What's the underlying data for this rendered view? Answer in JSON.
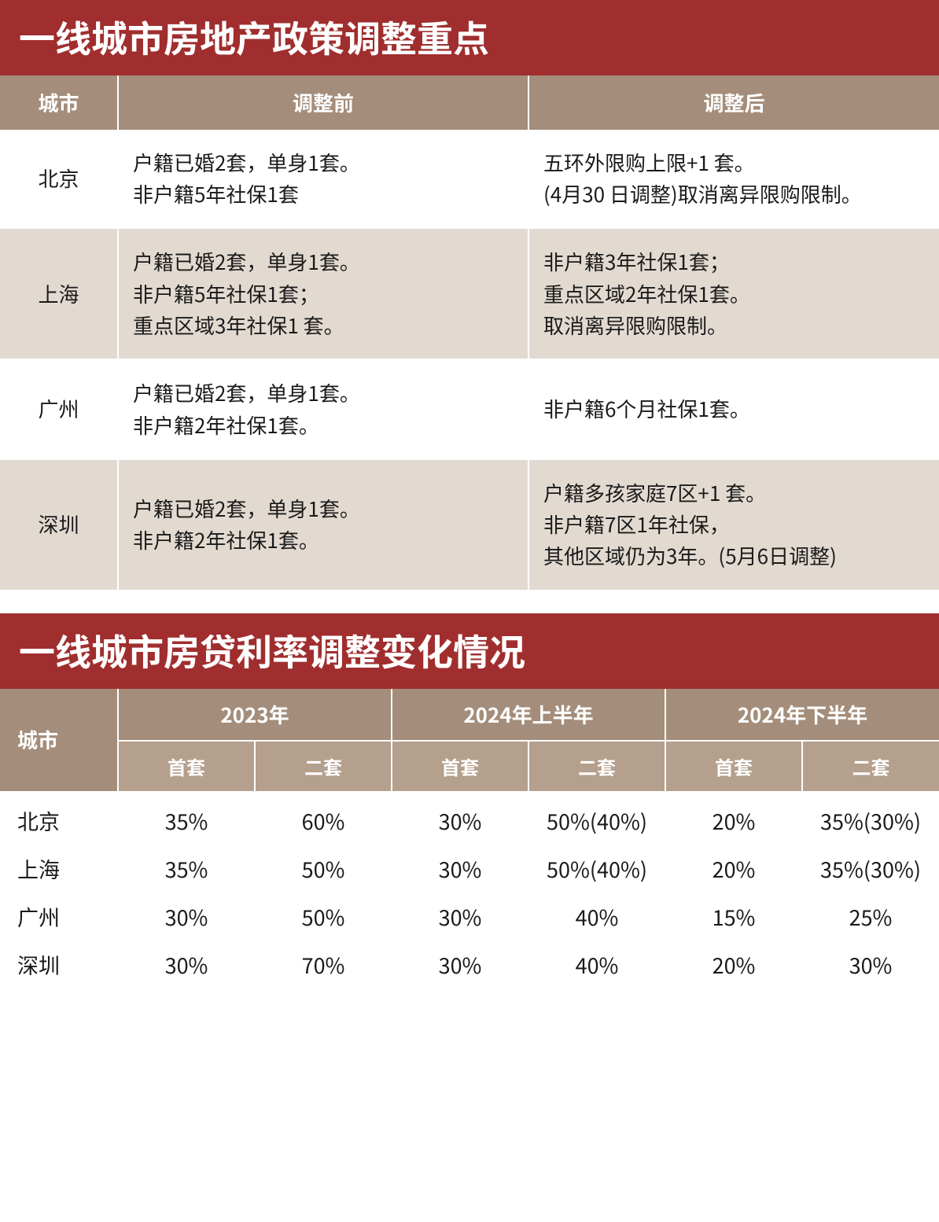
{
  "colors": {
    "title_bg": "#a02e2e",
    "header_bg": "#a48d7a",
    "header_sub_bg": "#b59f8d",
    "row_alt_bg": "#e2dad1",
    "row_bg": "#ffffff",
    "text_white": "#ffffff",
    "text_dark": "#1a1a1a",
    "border": "#ffffff"
  },
  "typography": {
    "title_fontsize": 46,
    "header_fontsize": 26,
    "cell_fontsize": 26,
    "sub_header_fontsize": 24,
    "t2_cell_fontsize": 27
  },
  "table1": {
    "title": "一线城市房地产政策调整重点",
    "columns": [
      "城市",
      "调整前",
      "调整后"
    ],
    "col_widths": [
      "150px",
      "auto",
      "auto"
    ],
    "rows": [
      {
        "city": "北京",
        "before": "户籍已婚2套，单身1套。\n非户籍5年社保1套",
        "after": "五环外限购上限+1 套。\n(4月30 日调整)取消离异限购限制。"
      },
      {
        "city": "上海",
        "before": "户籍已婚2套，单身1套。\n非户籍5年社保1套；\n重点区域3年社保1 套。",
        "after": "非户籍3年社保1套；\n重点区域2年社保1套。\n取消离异限购限制。"
      },
      {
        "city": "广州",
        "before": "户籍已婚2套，单身1套。\n非户籍2年社保1套。",
        "after": "非户籍6个月社保1套。"
      },
      {
        "city": "深圳",
        "before": "户籍已婚2套，单身1套。\n非户籍2年社保1套。",
        "after": "户籍多孩家庭7区+1 套。\n非户籍7区1年社保，\n其他区域仍为3年。(5月6日调整)"
      }
    ]
  },
  "table2": {
    "title": "一线城市房贷利率调整变化情况",
    "city_header": "城市",
    "periods": [
      "2023年",
      "2024年上半年",
      "2024年下半年"
    ],
    "sub_headers": [
      "首套",
      "二套"
    ],
    "rows": [
      {
        "city": "北京",
        "vals": [
          "35%",
          "60%",
          "30%",
          "50%(40%)",
          "20%",
          "35%(30%)"
        ]
      },
      {
        "city": "上海",
        "vals": [
          "35%",
          "50%",
          "30%",
          "50%(40%)",
          "20%",
          "35%(30%)"
        ]
      },
      {
        "city": "广州",
        "vals": [
          "30%",
          "50%",
          "30%",
          "40%",
          "15%",
          "25%"
        ]
      },
      {
        "city": "深圳",
        "vals": [
          "30%",
          "70%",
          "30%",
          "40%",
          "20%",
          "30%"
        ]
      }
    ]
  }
}
